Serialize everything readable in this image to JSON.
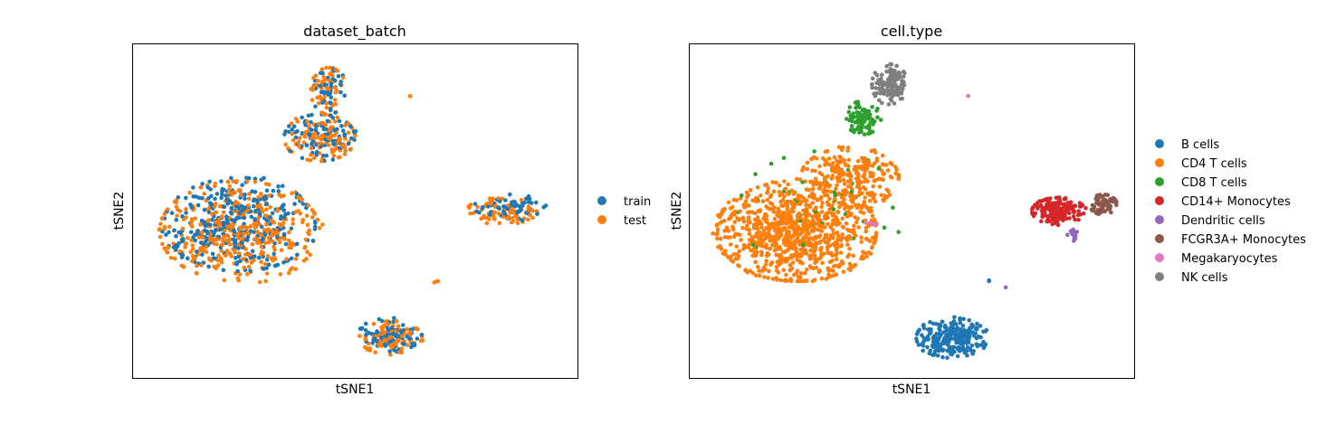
{
  "chart_data": [
    {
      "type": "scatter",
      "title": "dataset_batch",
      "xlabel": "tSNE1",
      "ylabel": "tSNE2",
      "xlim": [
        0,
        100
      ],
      "ylim": [
        0,
        100
      ],
      "grid": false,
      "legend_placement": "right",
      "series": [
        {
          "name": "train",
          "color": "#1f77b4",
          "clusters": [
            {
              "label": "main",
              "cx": 24,
              "cy": 46,
              "rx": 17,
              "ry": 14,
              "n": 340,
              "seed": 11
            },
            {
              "label": "upper",
              "cx": 42,
              "cy": 72,
              "rx": 8,
              "ry": 7,
              "n": 90,
              "seed": 12
            },
            {
              "label": "arm",
              "cx": 44,
              "cy": 86,
              "rx": 4,
              "ry": 7,
              "n": 45,
              "seed": 13
            },
            {
              "label": "bottom",
              "cx": 58,
              "cy": 13,
              "rx": 7,
              "ry": 5,
              "n": 90,
              "seed": 14
            },
            {
              "label": "right",
              "cx": 85,
              "cy": 51,
              "rx": 8,
              "ry": 4,
              "n": 60,
              "seed": 15
            }
          ]
        },
        {
          "name": "test",
          "color": "#ff7f0e",
          "clusters": [
            {
              "label": "main",
              "cx": 24,
              "cy": 44,
              "rx": 18,
              "ry": 15,
              "n": 420,
              "seed": 21
            },
            {
              "label": "upper",
              "cx": 42,
              "cy": 72,
              "rx": 8,
              "ry": 7,
              "n": 110,
              "seed": 22
            },
            {
              "label": "arm",
              "cx": 44,
              "cy": 86,
              "rx": 4,
              "ry": 7,
              "n": 55,
              "seed": 23
            },
            {
              "label": "bottom",
              "cx": 58,
              "cy": 12,
              "rx": 7,
              "ry": 5,
              "n": 100,
              "seed": 24
            },
            {
              "label": "right",
              "cx": 83,
              "cy": 50,
              "rx": 8,
              "ry": 4,
              "n": 70,
              "seed": 25
            },
            {
              "label": "outlier-a",
              "cx": 62.5,
              "cy": 84.5,
              "rx": 0.2,
              "ry": 0.2,
              "n": 2,
              "seed": 26
            },
            {
              "label": "outlier-b",
              "cx": 68,
              "cy": 29,
              "rx": 2,
              "ry": 1,
              "n": 3,
              "seed": 27
            }
          ]
        }
      ],
      "legend": [
        {
          "name": "train",
          "color": "#1f77b4"
        },
        {
          "name": "test",
          "color": "#ff7f0e"
        }
      ]
    },
    {
      "type": "scatter",
      "title": "cell.type",
      "xlabel": "tSNE1",
      "ylabel": "tSNE2",
      "xlim": [
        0,
        100
      ],
      "ylim": [
        0,
        100
      ],
      "grid": false,
      "legend_placement": "right",
      "series": [
        {
          "name": "B cells",
          "color": "#1f77b4",
          "clusters": [
            {
              "label": "b",
              "cx": 59,
              "cy": 12,
              "rx": 8,
              "ry": 6,
              "n": 240,
              "seed": 31
            },
            {
              "label": "b-stray",
              "cx": 67,
              "cy": 29,
              "rx": 1,
              "ry": 1,
              "n": 2,
              "seed": 32
            }
          ]
        },
        {
          "name": "CD4 T cells",
          "color": "#ff7f0e",
          "clusters": [
            {
              "label": "cd4-main",
              "cx": 24,
              "cy": 44,
              "rx": 18,
              "ry": 15,
              "n": 900,
              "seed": 33
            },
            {
              "label": "cd4-upper",
              "cx": 36,
              "cy": 60,
              "rx": 11,
              "ry": 9,
              "n": 260,
              "seed": 34
            }
          ]
        },
        {
          "name": "CD8 T cells",
          "color": "#2ca02c",
          "clusters": [
            {
              "label": "cd8-arm",
              "cx": 39,
              "cy": 78,
              "rx": 4,
              "ry": 5,
              "n": 90,
              "seed": 35
            },
            {
              "label": "cd8-scatter",
              "cx": 30,
              "cy": 50,
              "rx": 19,
              "ry": 18,
              "n": 40,
              "seed": 36
            }
          ]
        },
        {
          "name": "CD14+ Monocytes",
          "color": "#d62728",
          "clusters": [
            {
              "label": "cd14",
              "cx": 83,
              "cy": 50,
              "rx": 6,
              "ry": 4,
              "n": 170,
              "seed": 37
            }
          ]
        },
        {
          "name": "Dendritic cells",
          "color": "#9467bd",
          "clusters": [
            {
              "label": "dc",
              "cx": 86,
              "cy": 43,
              "rx": 1.2,
              "ry": 3,
              "n": 14,
              "seed": 38
            },
            {
              "label": "dc-stray",
              "cx": 71,
              "cy": 27,
              "rx": 0.3,
              "ry": 0.3,
              "n": 1,
              "seed": 39
            }
          ]
        },
        {
          "name": "FCGR3A+ Monocytes",
          "color": "#8c564b",
          "clusters": [
            {
              "label": "fcgr3a",
              "cx": 93,
              "cy": 52,
              "rx": 3,
              "ry": 3,
              "n": 70,
              "seed": 40
            }
          ]
        },
        {
          "name": "Megakaryocytes",
          "color": "#e377c2",
          "clusters": [
            {
              "label": "mk",
              "cx": 62.5,
              "cy": 84.5,
              "rx": 0.2,
              "ry": 0.2,
              "n": 1,
              "seed": 41
            },
            {
              "label": "mk-b",
              "cx": 41,
              "cy": 46,
              "rx": 1.5,
              "ry": 1,
              "n": 5,
              "seed": 42
            }
          ]
        },
        {
          "name": "NK cells",
          "color": "#7f7f7f",
          "clusters": [
            {
              "label": "nk",
              "cx": 45,
              "cy": 88,
              "rx": 4,
              "ry": 6,
              "n": 130,
              "seed": 43
            }
          ]
        }
      ],
      "legend": [
        {
          "name": "B cells",
          "color": "#1f77b4"
        },
        {
          "name": "CD4 T cells",
          "color": "#ff7f0e"
        },
        {
          "name": "CD8 T cells",
          "color": "#2ca02c"
        },
        {
          "name": "CD14+ Monocytes",
          "color": "#d62728"
        },
        {
          "name": "Dendritic cells",
          "color": "#9467bd"
        },
        {
          "name": "FCGR3A+ Monocytes",
          "color": "#8c564b"
        },
        {
          "name": "Megakaryocytes",
          "color": "#e377c2"
        },
        {
          "name": "NK cells",
          "color": "#7f7f7f"
        }
      ]
    }
  ]
}
